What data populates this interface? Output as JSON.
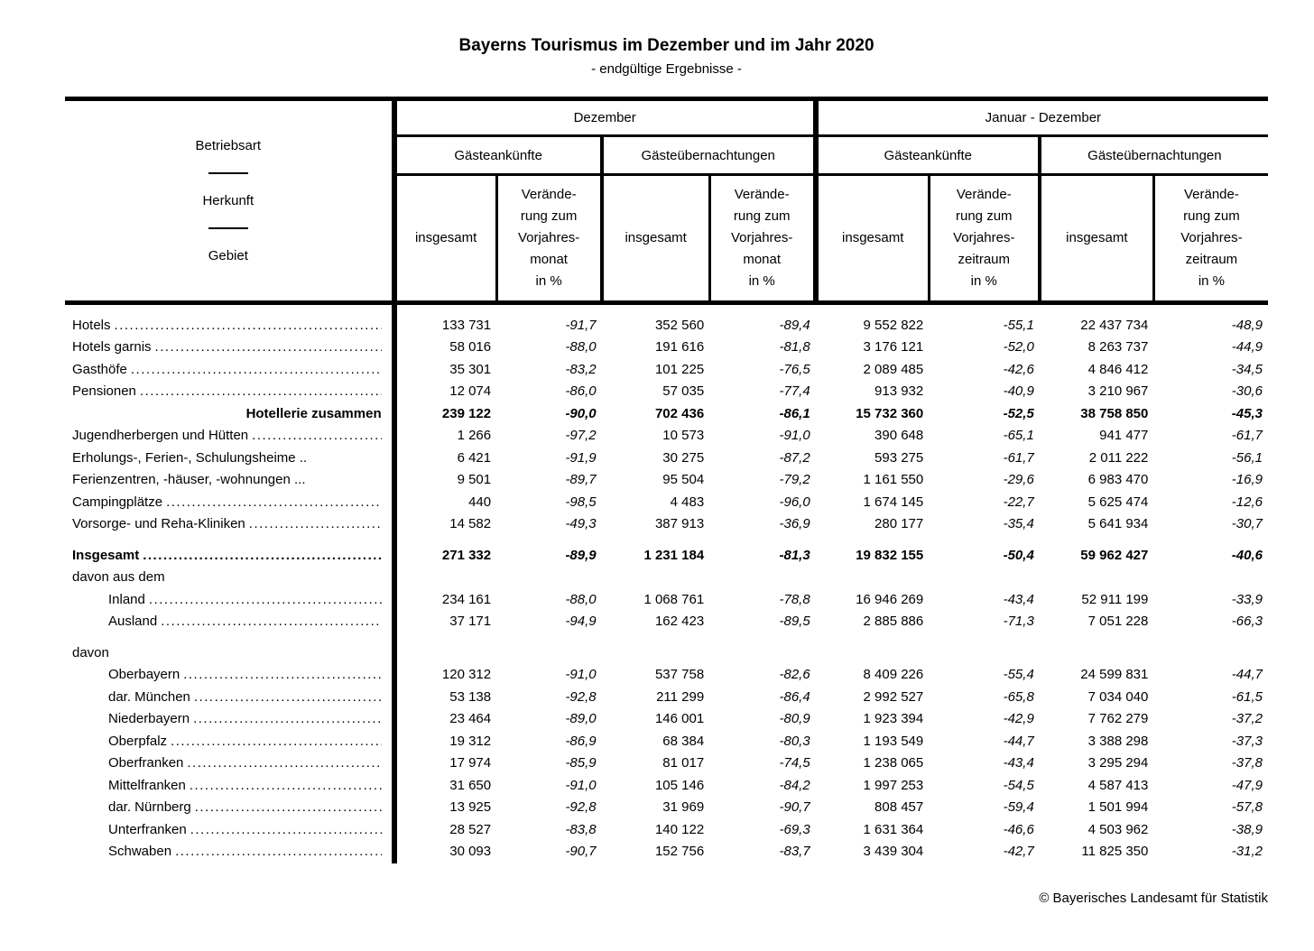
{
  "title": "Bayerns Tourismus im Dezember und im Jahr 2020",
  "subtitle": "- endgültige Ergebnisse -",
  "stub": {
    "line1": "Betriebsart",
    "line2": "Herkunft",
    "line3": "Gebiet"
  },
  "header": {
    "periods": [
      {
        "label": "Dezember",
        "groups": [
          {
            "label": "Gästeankünfte"
          },
          {
            "label": "Gästeübernachtungen"
          }
        ],
        "cols": [
          {
            "label": "insgesamt"
          },
          {
            "label": "Verände-\nrung zum\nVorjahres-\nmonat\nin %"
          },
          {
            "label": "insgesamt"
          },
          {
            "label": "Verände-\nrung zum\nVorjahres-\nmonat\nin %"
          }
        ]
      },
      {
        "label": "Januar - Dezember",
        "groups": [
          {
            "label": "Gästeankünfte"
          },
          {
            "label": "Gästeübernachtungen"
          }
        ],
        "cols": [
          {
            "label": "insgesamt"
          },
          {
            "label": "Verände-\nrung zum\nVorjahres-\nzeitraum\nin %"
          },
          {
            "label": "insgesamt"
          },
          {
            "label": "Verände-\nrung zum\nVorjahres-\nzeitraum\nin %"
          }
        ]
      }
    ]
  },
  "rows": [
    {
      "type": "spacer"
    },
    {
      "label": "Hotels",
      "indent": 0,
      "leader": true,
      "values": [
        "133 731",
        "-91,7",
        "352 560",
        "-89,4",
        "9 552 822",
        "-55,1",
        "22 437 734",
        "-48,9"
      ]
    },
    {
      "label": "Hotels garnis",
      "indent": 0,
      "leader": true,
      "values": [
        "58 016",
        "-88,0",
        "191 616",
        "-81,8",
        "3 176 121",
        "-52,0",
        "8 263 737",
        "-44,9"
      ]
    },
    {
      "label": "Gasthöfe",
      "indent": 0,
      "leader": true,
      "values": [
        "35 301",
        "-83,2",
        "101 225",
        "-76,5",
        "2 089 485",
        "-42,6",
        "4 846 412",
        "-34,5"
      ]
    },
    {
      "label": "Pensionen",
      "indent": 0,
      "leader": true,
      "values": [
        "12 074",
        "-86,0",
        "57 035",
        "-77,4",
        "913 932",
        "-40,9",
        "3 210 967",
        "-30,6"
      ]
    },
    {
      "label": "Hotellerie zusammen",
      "indent": 0,
      "leader": false,
      "bold": true,
      "align": "right",
      "values": [
        "239 122",
        "-90,0",
        "702 436",
        "-86,1",
        "15 732 360",
        "-52,5",
        "38 758 850",
        "-45,3"
      ]
    },
    {
      "label": "Jugendherbergen und Hütten",
      "indent": 0,
      "leader": true,
      "values": [
        "1 266",
        "-97,2",
        "10 573",
        "-91,0",
        "390 648",
        "-65,1",
        "941 477",
        "-61,7"
      ]
    },
    {
      "label": "Erholungs-, Ferien-, Schulungsheime ..",
      "indent": 0,
      "leader": false,
      "values": [
        "6 421",
        "-91,9",
        "30 275",
        "-87,2",
        "593 275",
        "-61,7",
        "2 011 222",
        "-56,1"
      ]
    },
    {
      "label": "Ferienzentren, -häuser, -wohnungen ...",
      "indent": 0,
      "leader": false,
      "values": [
        "9 501",
        "-89,7",
        "95 504",
        "-79,2",
        "1 161 550",
        "-29,6",
        "6 983 470",
        "-16,9"
      ]
    },
    {
      "label": "Campingplätze",
      "indent": 0,
      "leader": true,
      "values": [
        "440",
        "-98,5",
        "4 483",
        "-96,0",
        "1 674 145",
        "-22,7",
        "5 625 474",
        "-12,6"
      ]
    },
    {
      "label": "Vorsorge- und Reha-Kliniken",
      "indent": 0,
      "leader": true,
      "values": [
        "14 582",
        "-49,3",
        "387 913",
        "-36,9",
        "280 177",
        "-35,4",
        "5 641 934",
        "-30,7"
      ]
    },
    {
      "type": "spacer"
    },
    {
      "label": "Insgesamt",
      "indent": 0,
      "leader": true,
      "bold": true,
      "values": [
        "271 332",
        "-89,9",
        "1 231 184",
        "-81,3",
        "19 832 155",
        "-50,4",
        "59 962 427",
        "-40,6"
      ]
    },
    {
      "label": "davon aus dem",
      "indent": 0,
      "leader": false,
      "values": []
    },
    {
      "label": "Inland",
      "indent": 1,
      "leader": true,
      "values": [
        "234 161",
        "-88,0",
        "1 068 761",
        "-78,8",
        "16 946 269",
        "-43,4",
        "52 911 199",
        "-33,9"
      ]
    },
    {
      "label": "Ausland",
      "indent": 1,
      "leader": true,
      "values": [
        "37 171",
        "-94,9",
        "162 423",
        "-89,5",
        "2 885 886",
        "-71,3",
        "7 051 228",
        "-66,3"
      ]
    },
    {
      "type": "spacer"
    },
    {
      "label": "davon",
      "indent": 0,
      "leader": false,
      "values": []
    },
    {
      "label": "Oberbayern",
      "indent": 1,
      "leader": true,
      "values": [
        "120 312",
        "-91,0",
        "537 758",
        "-82,6",
        "8 409 226",
        "-55,4",
        "24 599 831",
        "-44,7"
      ]
    },
    {
      "label": "dar. München",
      "indent": 1,
      "leader": true,
      "values": [
        "53 138",
        "-92,8",
        "211 299",
        "-86,4",
        "2 992 527",
        "-65,8",
        "7 034 040",
        "-61,5"
      ]
    },
    {
      "label": "Niederbayern",
      "indent": 1,
      "leader": true,
      "values": [
        "23 464",
        "-89,0",
        "146 001",
        "-80,9",
        "1 923 394",
        "-42,9",
        "7 762 279",
        "-37,2"
      ]
    },
    {
      "label": "Oberpfalz",
      "indent": 1,
      "leader": true,
      "values": [
        "19 312",
        "-86,9",
        "68 384",
        "-80,3",
        "1 193 549",
        "-44,7",
        "3 388 298",
        "-37,3"
      ]
    },
    {
      "label": "Oberfranken",
      "indent": 1,
      "leader": true,
      "values": [
        "17 974",
        "-85,9",
        "81 017",
        "-74,5",
        "1 238 065",
        "-43,4",
        "3 295 294",
        "-37,8"
      ]
    },
    {
      "label": "Mittelfranken",
      "indent": 1,
      "leader": true,
      "values": [
        "31 650",
        "-91,0",
        "105 146",
        "-84,2",
        "1 997 253",
        "-54,5",
        "4 587 413",
        "-47,9"
      ]
    },
    {
      "label": "dar. Nürnberg",
      "indent": 1,
      "leader": true,
      "values": [
        "13 925",
        "-92,8",
        "31 969",
        "-90,7",
        "808 457",
        "-59,4",
        "1 501 994",
        "-57,8"
      ]
    },
    {
      "label": "Unterfranken",
      "indent": 1,
      "leader": true,
      "values": [
        "28 527",
        "-83,8",
        "140 122",
        "-69,3",
        "1 631 364",
        "-46,6",
        "4 503 962",
        "-38,9"
      ]
    },
    {
      "label": "Schwaben",
      "indent": 1,
      "leader": true,
      "values": [
        "30 093",
        "-90,7",
        "152 756",
        "-83,7",
        "3 439 304",
        "-42,7",
        "11 825 350",
        "-31,2"
      ]
    }
  ],
  "footer": "© Bayerisches Landesamt für Statistik"
}
